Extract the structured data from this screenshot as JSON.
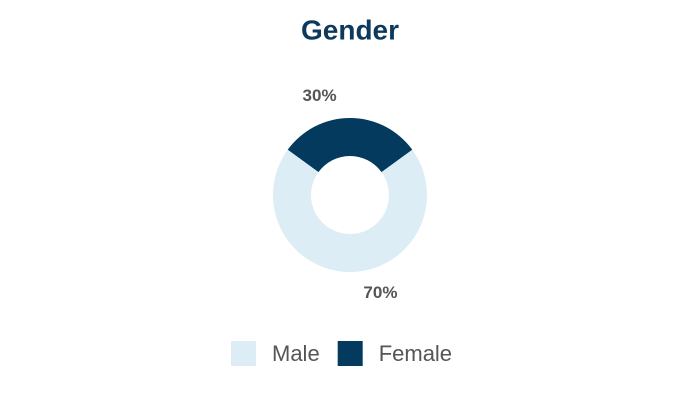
{
  "chart_data": {
    "type": "donut",
    "title": "Gender",
    "categories": [
      "Male",
      "Female"
    ],
    "values": [
      70,
      30
    ],
    "value_labels": [
      "70%",
      "30%"
    ],
    "colors": [
      "#dcedf5",
      "#033a5e"
    ]
  }
}
